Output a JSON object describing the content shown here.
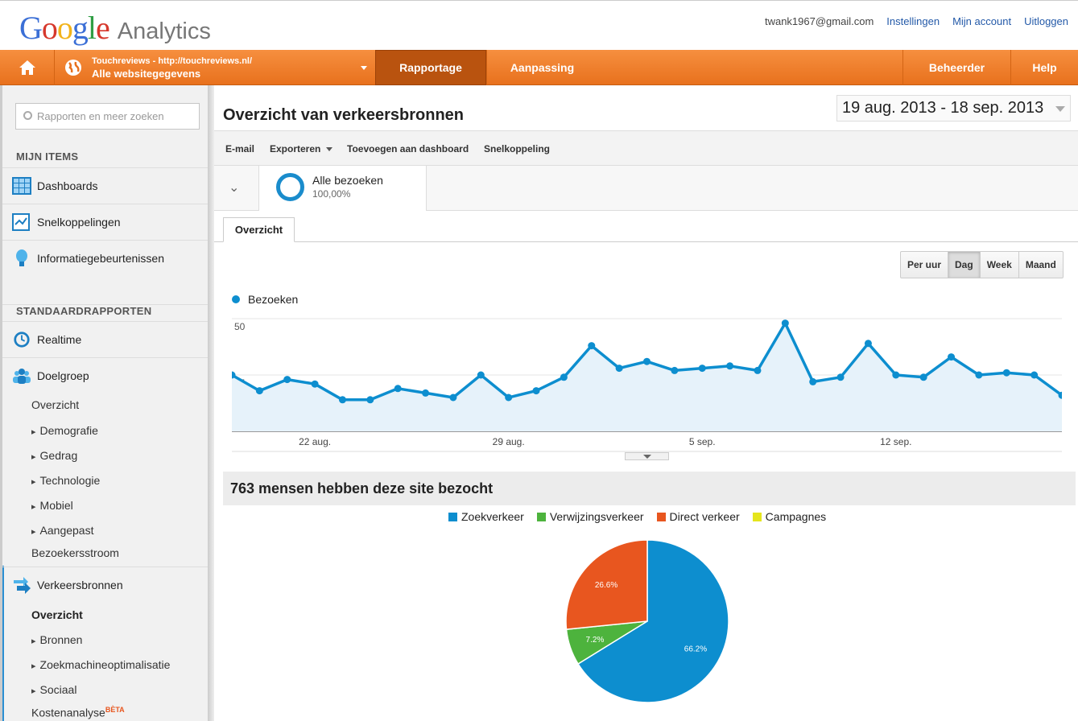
{
  "topbar": {
    "logo_google": "Google",
    "logo_product": "Analytics",
    "email": "twank1967@gmail.com",
    "links": [
      "Instellingen",
      "Mijn account",
      "Uitloggen"
    ]
  },
  "nav": {
    "site_url": "Touchreviews - http://touchreviews.nl/",
    "site_view": "Alle websitegegevens",
    "rapportage": "Rapportage",
    "aanpassing": "Aanpassing",
    "beheerder": "Beheerder",
    "help": "Help"
  },
  "sidebar": {
    "search_placeholder": "Rapporten en meer zoeken",
    "mijn_items_title": "MIJN ITEMS",
    "mijn_items": [
      "Dashboards",
      "Snelkoppelingen",
      "Informatiegebeurtenissen"
    ],
    "standaard_title": "STANDAARDRAPPORTEN",
    "realtime": "Realtime",
    "doelgroep": "Doelgroep",
    "doelgroep_sub": [
      "Overzicht",
      "Demografie",
      "Gedrag",
      "Technologie",
      "Mobiel",
      "Aangepast",
      "Bezoekersstroom"
    ],
    "verkeersbronnen": "Verkeersbronnen",
    "verkeer_sub": [
      "Overzicht",
      "Bronnen",
      "Zoekmachineoptimalisatie",
      "Sociaal"
    ],
    "kostenanalyse": "Kostenanalyse",
    "beta": "BÈTA"
  },
  "main": {
    "title": "Overzicht van verkeersbronnen",
    "date_range": "19 aug. 2013 - 18 sep. 2013",
    "toolbar": [
      "E-mail",
      "Exporteren",
      "Toevoegen aan dashboard",
      "Snelkoppeling"
    ],
    "segment_name": "Alle bezoeken",
    "segment_pct": "100,00%",
    "tab": "Overzicht",
    "granularity": [
      "Per uur",
      "Dag",
      "Week",
      "Maand"
    ],
    "granularity_selected": "Dag",
    "metric_label": "Bezoeken",
    "visitors_heading": "763 mensen hebben deze site bezocht"
  },
  "colors": {
    "orange": "#ee7a27",
    "line": "#0d8ecf",
    "zoek": "#0d8ecf",
    "verwijzing": "#4db33d",
    "direct": "#e8561f",
    "campagnes": "#e5e51d"
  },
  "chart_data": [
    {
      "type": "area",
      "series": [
        {
          "name": "Bezoeken",
          "x": [
            "19 aug.",
            "20 aug.",
            "21 aug.",
            "22 aug.",
            "23 aug.",
            "24 aug.",
            "25 aug.",
            "26 aug.",
            "27 aug.",
            "28 aug.",
            "29 aug.",
            "30 aug.",
            "31 aug.",
            "1 sep.",
            "2 sep.",
            "3 sep.",
            "4 sep.",
            "5 sep.",
            "6 sep.",
            "7 sep.",
            "8 sep.",
            "9 sep.",
            "10 sep.",
            "11 sep.",
            "12 sep.",
            "13 sep.",
            "14 sep.",
            "15 sep.",
            "16 sep.",
            "17 sep.",
            "18 sep."
          ],
          "values": [
            25,
            18,
            23,
            21,
            14,
            14,
            19,
            17,
            15,
            25,
            15,
            18,
            24,
            38,
            28,
            31,
            27,
            28,
            29,
            27,
            48,
            22,
            24,
            39,
            25,
            24,
            33,
            25,
            26,
            25,
            16
          ]
        }
      ],
      "xticks": [
        "22 aug.",
        "29 aug.",
        "5 sep.",
        "12 sep."
      ],
      "yticks": [
        25,
        50
      ],
      "ylim": [
        0,
        50
      ]
    },
    {
      "type": "pie",
      "categories": [
        "Zoekverkeer",
        "Verwijzingsverkeer",
        "Direct verkeer",
        "Campagnes"
      ],
      "values": [
        66.2,
        7.2,
        26.6,
        0
      ],
      "labels": [
        "66.2%",
        "7.2%",
        "26.6%",
        ""
      ]
    }
  ]
}
